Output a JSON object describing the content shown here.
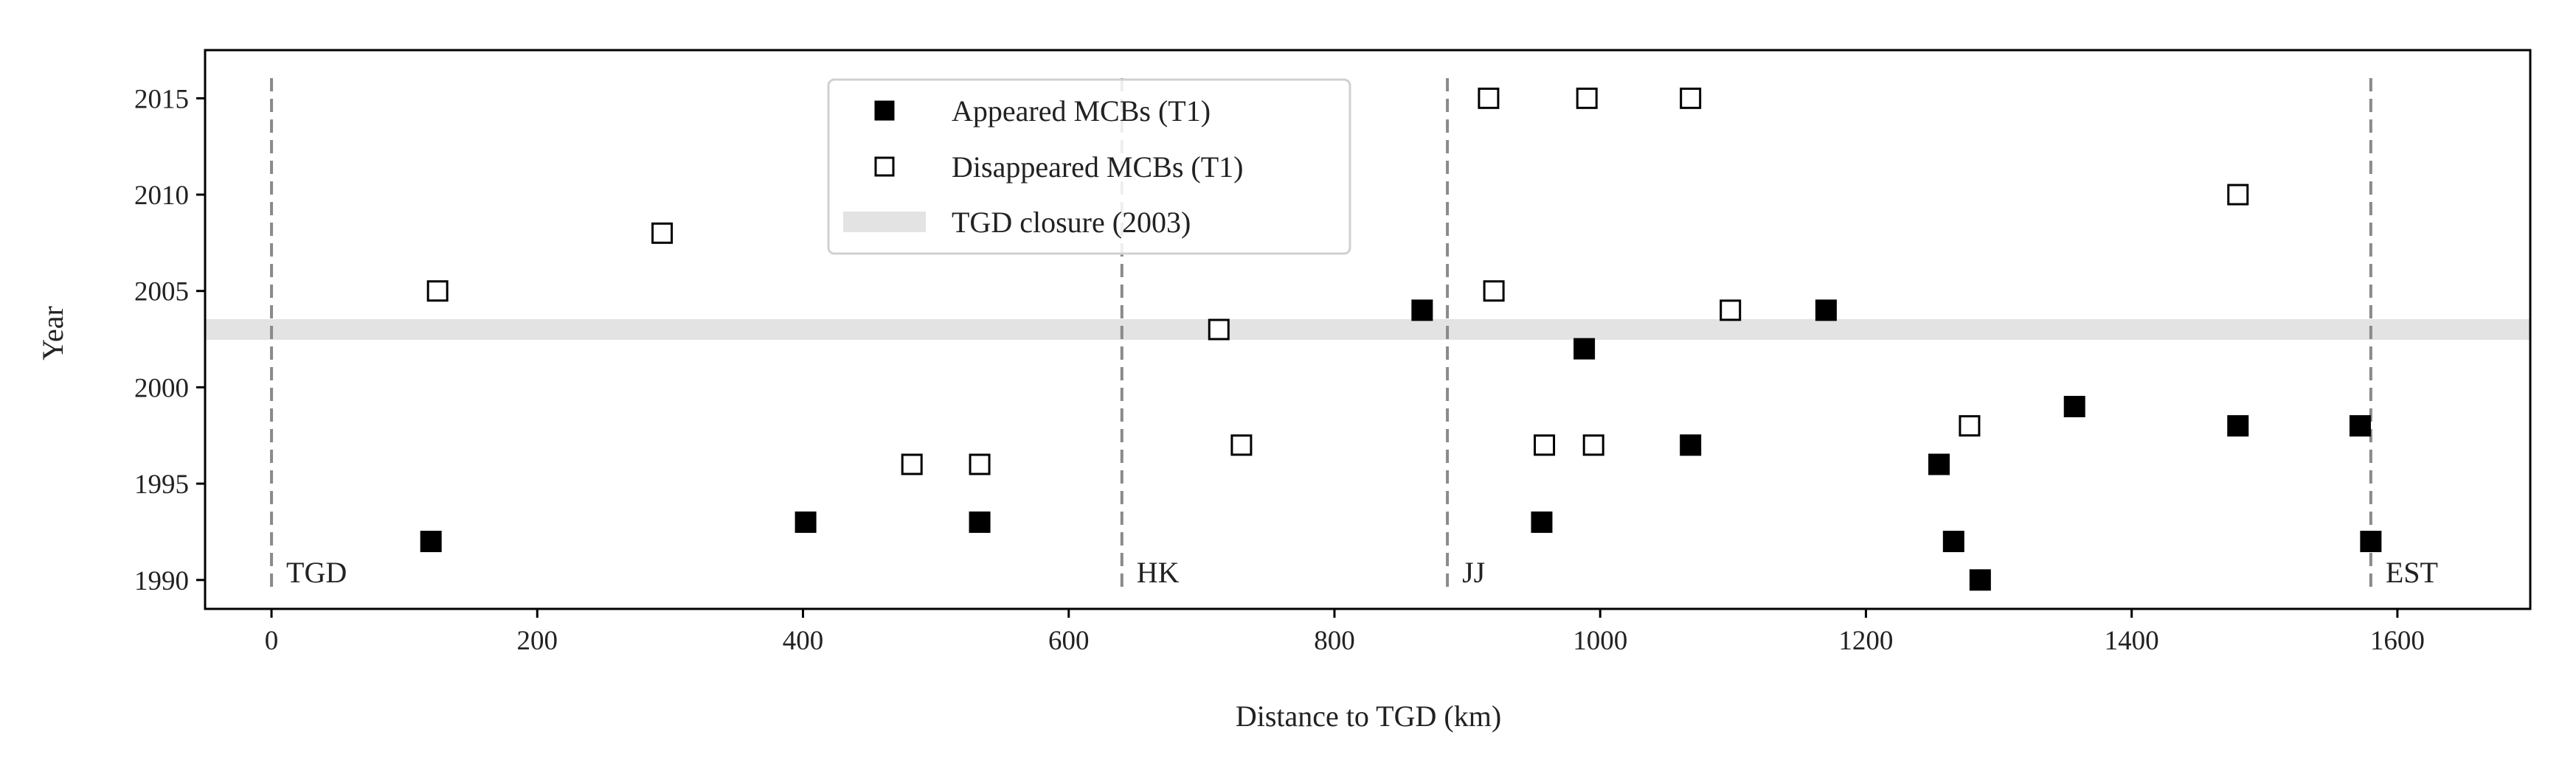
{
  "chart_data": {
    "type": "scatter",
    "title": "",
    "xlabel": "Distance to TGD (km)",
    "ylabel": "Year",
    "xlim": [
      -50,
      1700
    ],
    "ylim": [
      1988.5,
      2017.5
    ],
    "xticks": [
      0,
      200,
      400,
      600,
      800,
      1000,
      1200,
      1400,
      1600
    ],
    "yticks": [
      1990,
      1995,
      2000,
      2005,
      2010,
      2015
    ],
    "grid": false,
    "legend": {
      "placement": "top-center",
      "entries": [
        "Appeared MCBs (T1)",
        "Disappeared MCBs (T1)",
        "TGD closure (2003)"
      ]
    },
    "series": [
      {
        "name": "Appeared MCBs (T1)",
        "marker": "filled-square",
        "color": "#000000",
        "points": [
          {
            "x": 120,
            "y": 1992
          },
          {
            "x": 402,
            "y": 1993
          },
          {
            "x": 533,
            "y": 1993
          },
          {
            "x": 866,
            "y": 2004
          },
          {
            "x": 956,
            "y": 1993
          },
          {
            "x": 988,
            "y": 2002
          },
          {
            "x": 1068,
            "y": 1997
          },
          {
            "x": 1170,
            "y": 2004
          },
          {
            "x": 1255,
            "y": 1996
          },
          {
            "x": 1266,
            "y": 1992
          },
          {
            "x": 1286,
            "y": 1990
          },
          {
            "x": 1357,
            "y": 1999
          },
          {
            "x": 1480,
            "y": 1998
          },
          {
            "x": 1572,
            "y": 1998
          },
          {
            "x": 1580,
            "y": 1992
          }
        ]
      },
      {
        "name": "Disappeared MCBs (T1)",
        "marker": "open-square",
        "color": "#000000",
        "points": [
          {
            "x": 125,
            "y": 2005
          },
          {
            "x": 294,
            "y": 2008
          },
          {
            "x": 482,
            "y": 1996
          },
          {
            "x": 533,
            "y": 1996
          },
          {
            "x": 713,
            "y": 2003
          },
          {
            "x": 730,
            "y": 1997
          },
          {
            "x": 916,
            "y": 2015
          },
          {
            "x": 920,
            "y": 2005
          },
          {
            "x": 958,
            "y": 1997
          },
          {
            "x": 990,
            "y": 2015
          },
          {
            "x": 995,
            "y": 1997
          },
          {
            "x": 1068,
            "y": 2015
          },
          {
            "x": 1098,
            "y": 2004
          },
          {
            "x": 1278,
            "y": 1998
          },
          {
            "x": 1480,
            "y": 2010
          }
        ]
      }
    ],
    "band": {
      "name": "TGD closure (2003)",
      "y": 2003,
      "color": "#e3e3e3"
    },
    "vlines": [
      {
        "x": 0,
        "label": "TGD"
      },
      {
        "x": 640,
        "label": "HK"
      },
      {
        "x": 885,
        "label": "JJ"
      },
      {
        "x": 1580,
        "label": "EST"
      }
    ]
  }
}
